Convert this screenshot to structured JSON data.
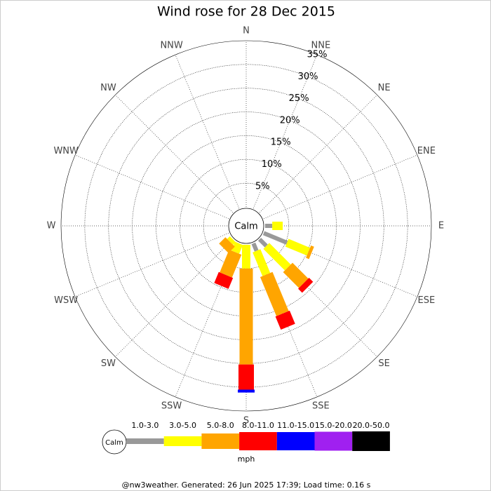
{
  "chart_data": {
    "type": "windrose",
    "title": "Wind rose for 28 Dec 2015",
    "directions": [
      "N",
      "NNE",
      "NE",
      "ENE",
      "E",
      "ESE",
      "SE",
      "SSE",
      "S",
      "SSW",
      "SW",
      "WSW",
      "W",
      "WNW",
      "NW",
      "NNW"
    ],
    "series": [
      {
        "name": "1.0-3.0",
        "color": "#999999",
        "values": [
          0,
          0,
          0,
          0,
          1.5,
          5.3,
          2,
          1.7,
          0,
          0,
          0,
          0,
          0,
          0,
          0,
          0
        ]
      },
      {
        "name": "3.0-5.0",
        "color": "#ffff00",
        "values": [
          0,
          0,
          0,
          0,
          2.2,
          4.9,
          6.4,
          5.4,
          5,
          2,
          0.8,
          0,
          0,
          0,
          0,
          0
        ]
      },
      {
        "name": "5.0-8.0",
        "color": "#ffa500",
        "values": [
          0,
          0,
          0,
          0,
          0,
          0.7,
          4.7,
          8.9,
          20.2,
          5.2,
          1.9,
          0,
          0,
          0,
          0,
          0
        ]
      },
      {
        "name": "8.0-11.0",
        "color": "#ff0000",
        "values": [
          0,
          0,
          0,
          0,
          0,
          0,
          1.2,
          3,
          5.3,
          2.5,
          0,
          0,
          0,
          0,
          0,
          0
        ]
      },
      {
        "name": "11.0-15.0",
        "color": "#0000ff",
        "values": [
          0,
          0,
          0,
          0,
          0,
          0,
          0,
          0,
          0.6,
          0,
          0,
          0,
          0,
          0,
          0,
          0
        ]
      },
      {
        "name": "15.0-20.0",
        "color": "#a020f0",
        "values": [
          0,
          0,
          0,
          0,
          0,
          0,
          0,
          0,
          0,
          0,
          0,
          0,
          0,
          0,
          0,
          0
        ]
      },
      {
        "name": "20.0-50.0",
        "color": "#000000",
        "values": [
          0,
          0,
          0,
          0,
          0,
          0,
          0,
          0,
          0,
          0,
          0,
          0,
          0,
          0,
          0,
          0
        ]
      }
    ],
    "rlim": [
      0,
      35
    ],
    "rticks": [
      {
        "value": 5,
        "label": "5%"
      },
      {
        "value": 10,
        "label": "10%"
      },
      {
        "value": 15,
        "label": "15%"
      },
      {
        "value": 20,
        "label": "20%"
      },
      {
        "value": 25,
        "label": "25%"
      },
      {
        "value": 30,
        "label": "30%"
      },
      {
        "value": 35,
        "label": "35%"
      }
    ],
    "calm_label": "Calm",
    "unit": "mph",
    "footer": "@nw3weather. Generated: 26 Jun 2025 17:39; Load time: 0.16 s"
  }
}
